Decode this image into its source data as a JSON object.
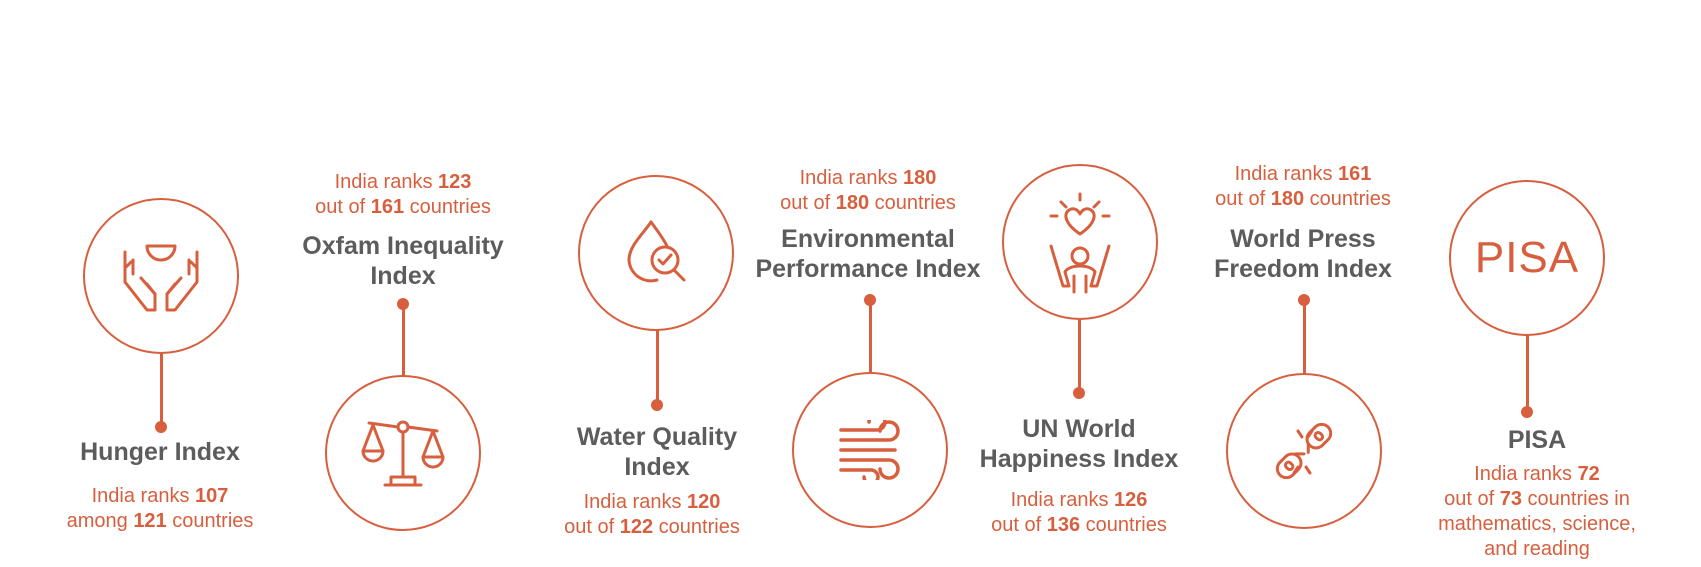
{
  "colors": {
    "accent": "#d75f3e",
    "title": "#5c5c5c"
  },
  "items": [
    {
      "title_lines": [
        "Hunger Index"
      ],
      "rank_prefix": "India ranks ",
      "rank_value": "107",
      "rank_mid": "among ",
      "total": "121",
      "rank_suffix": " countries",
      "icon": "hands-bowl-icon"
    },
    {
      "title_lines": [
        "Oxfam Inequality",
        "Index"
      ],
      "rank_prefix": "India ranks ",
      "rank_value": "123",
      "rank_mid": "out of ",
      "total": "161",
      "rank_suffix": " countries",
      "icon": "scales-icon"
    },
    {
      "title_lines": [
        "Water Quality",
        "Index"
      ],
      "rank_prefix": "India ranks ",
      "rank_value": "120",
      "rank_mid": "out of ",
      "total": "122",
      "rank_suffix": " countries",
      "icon": "water-drop-magnifier-icon"
    },
    {
      "title_lines": [
        "Environmental",
        "Performance Index"
      ],
      "rank_prefix": "India ranks ",
      "rank_value": "180",
      "rank_mid": "out of ",
      "total": "180",
      "rank_suffix": " countries",
      "icon": "wind-icon"
    },
    {
      "title_lines": [
        "UN World",
        "Happiness Index"
      ],
      "rank_prefix": "India ranks ",
      "rank_value": "126",
      "rank_mid": "out of ",
      "total": "136",
      "rank_suffix": " countries",
      "icon": "happy-person-heart-icon"
    },
    {
      "title_lines": [
        "World Press",
        "Freedom Index"
      ],
      "rank_prefix": "India ranks ",
      "rank_value": "161",
      "rank_mid": "out of ",
      "total": "180",
      "rank_suffix": " countries",
      "icon": "broken-chain-icon"
    },
    {
      "title_lines": [
        "PISA"
      ],
      "rank_prefix": "India ranks ",
      "rank_value": "72",
      "rank_mid": "out of ",
      "total": "73",
      "rank_suffix": " countries in",
      "rank_extra": [
        "mathematics, science,",
        "and reading"
      ],
      "icon": "pisa-logo",
      "logo_text": "PISA"
    }
  ]
}
